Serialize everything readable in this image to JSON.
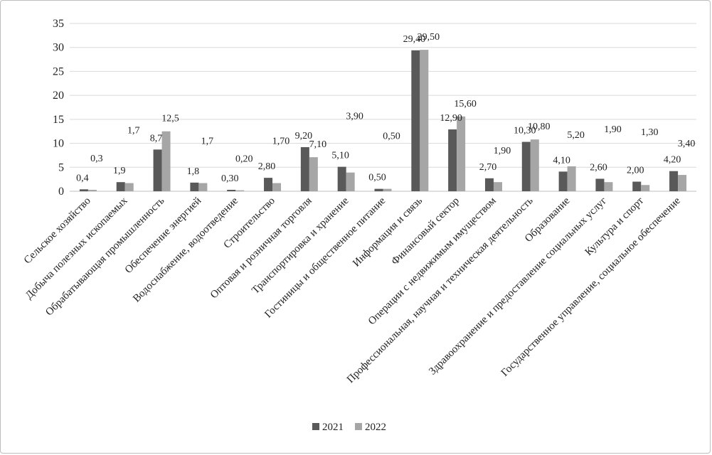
{
  "chart_data": {
    "type": "bar",
    "title": "",
    "xlabel": "",
    "ylabel": "",
    "ylim": [
      0,
      35
    ],
    "yticks": [
      "0",
      "5",
      "10",
      "15",
      "20",
      "25",
      "30",
      "35"
    ],
    "grid": true,
    "legend_position": "bottom",
    "colors": [
      "#595959",
      "#a6a6a6"
    ],
    "categories": [
      "Сельское хозяйство",
      "Добыча полезных ископаемых",
      "Обрабатывающая промышленность",
      "Обеспечение энергией",
      "Водоснабжение, водоотведение",
      "Строительство",
      "Оптовая и розничная торговля",
      "Транспортировка и хранение",
      "Гостиницы и общественное питание",
      "Информация и связь",
      "Финансовый сектор",
      "Операции с недвижимым имуществом",
      "Профессиональная, научная и техническая деятельность",
      "Образование",
      "Здравоохранение и предоставление социальных услуг",
      "Культура и спорт",
      "Государственное управление, социальное обеспечение"
    ],
    "series": [
      {
        "name": "2021",
        "values": [
          0.4,
          1.9,
          8.7,
          1.8,
          0.3,
          2.8,
          9.2,
          5.1,
          0.5,
          29.4,
          12.9,
          2.7,
          10.3,
          4.1,
          2.6,
          2.0,
          4.2
        ],
        "labels": [
          "0,4",
          "1,9",
          "8,7",
          "1,8",
          "0,30",
          "2,80",
          "9,20",
          "5,10",
          "0,50",
          "29,40",
          "12,90",
          "2,70",
          "10,30",
          "4,10",
          "2,60",
          "2,00",
          "4,20"
        ]
      },
      {
        "name": "2022",
        "values": [
          0.3,
          1.7,
          12.5,
          1.7,
          0.2,
          1.7,
          7.1,
          3.9,
          0.5,
          29.5,
          15.6,
          1.9,
          10.8,
          5.2,
          1.9,
          1.3,
          3.4
        ],
        "labels": [
          "0,3",
          "1,7",
          "12,5",
          "1,7",
          "0,20",
          "1,70",
          "7,10",
          "3,90",
          "0,50",
          "29,50",
          "15,60",
          "1,90",
          "10,80",
          "5,20",
          "1,90",
          "1,30",
          "3,40"
        ]
      }
    ]
  }
}
